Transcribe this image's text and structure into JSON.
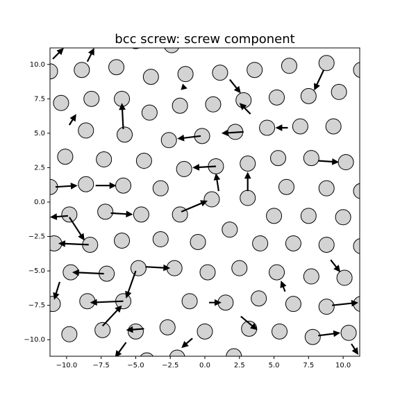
{
  "chart_data": {
    "type": "quiver",
    "title": "bcc screw: screw component",
    "xlim": [
      -11.2,
      11.2
    ],
    "ylim": [
      -11.2,
      11.2
    ],
    "xticks": [
      {
        "value": -10,
        "label": "−10.0"
      },
      {
        "value": -7.5,
        "label": "−7.5"
      },
      {
        "value": -5,
        "label": "−5.0"
      },
      {
        "value": -2.5,
        "label": "−2.5"
      },
      {
        "value": 0,
        "label": "0.0"
      },
      2.5,
      {
        "value": 5,
        "label": "5.0"
      },
      7.5,
      {
        "value": 10,
        "label": "10.0"
      }
    ],
    "yticks": [
      {
        "value": -10,
        "label": "−10.0"
      },
      {
        "value": -7.5,
        "label": "−7.5"
      },
      {
        "value": -5,
        "label": "−5.0"
      },
      {
        "value": -2.5,
        "label": "−2.5"
      },
      {
        "value": 0,
        "label": "0.0"
      },
      2.5,
      {
        "value": 5,
        "label": "5.0"
      },
      7.5,
      {
        "value": 10,
        "label": "10.0"
      }
    ],
    "atoms": {
      "color": "#d3d3d3",
      "x": [
        -11.2,
        -8.9,
        -6.4,
        -3.9,
        -1.4,
        1.1,
        3.6,
        6.1,
        8.8,
        11.3,
        -10.4,
        -8.2,
        -6.0,
        -4.0,
        -1.8,
        0.6,
        2.8,
        5.2,
        7.5,
        9.7,
        -8.6,
        -5.8,
        -2.6,
        -0.2,
        2.2,
        4.5,
        6.9,
        9.3,
        -10.1,
        -7.3,
        -4.4,
        -1.5,
        0.8,
        3.1,
        5.3,
        7.7,
        10.2,
        -11.2,
        -8.6,
        -5.9,
        -3.2,
        0.5,
        3.1,
        5.9,
        8.8,
        11.3,
        -9.8,
        -7.2,
        -4.6,
        -1.8,
        1.8,
        5.0,
        7.5,
        10.0,
        -10.9,
        -8.3,
        -6.0,
        -3.2,
        -0.5,
        4.0,
        6.4,
        8.8,
        11.3,
        -9.7,
        -7.1,
        -4.8,
        -2.2,
        0.2,
        2.5,
        5.2,
        7.7,
        10.1,
        -11.0,
        -8.5,
        -5.9,
        -1.1,
        1.5,
        3.9,
        6.4,
        8.8,
        11.3,
        -9.8,
        -7.4,
        -5.0,
        -2.7,
        0.0,
        3.2,
        5.4,
        7.8,
        10.4,
        -5.0,
        -2.4,
        -2.0,
        2.1,
        -4.2
      ],
      "y": [
        9.5,
        9.6,
        9.8,
        9.1,
        9.3,
        9.4,
        9.6,
        9.9,
        10.1,
        9.6,
        7.2,
        7.5,
        7.5,
        6.5,
        7.0,
        7.1,
        7.4,
        7.6,
        7.7,
        8.0,
        5.2,
        4.9,
        4.5,
        4.8,
        5.1,
        5.4,
        5.5,
        5.5,
        3.3,
        3.1,
        3.0,
        2.4,
        2.6,
        2.8,
        3.2,
        3.2,
        2.9,
        1.1,
        1.3,
        1.2,
        1.0,
        0.2,
        0.3,
        1.1,
        1.0,
        0.8,
        -0.9,
        -0.7,
        -0.9,
        -0.9,
        -2.0,
        -1.0,
        -1.0,
        -1.1,
        -3.0,
        -3.1,
        -2.8,
        -2.7,
        -2.9,
        -3.0,
        -3.0,
        -3.1,
        -3.2,
        -5.1,
        -5.2,
        -4.8,
        -4.8,
        -5.1,
        -4.8,
        -5.1,
        -5.4,
        -5.5,
        -7.4,
        -7.2,
        -7.2,
        -7.2,
        -7.3,
        -7.0,
        -7.4,
        -7.6,
        -7.4,
        -9.6,
        -9.3,
        -9.4,
        -9.1,
        -9.4,
        -9.2,
        -9.4,
        -9.8,
        -9.5,
        11.7,
        11.4,
        -11.3,
        -11.2,
        -11.5
      ]
    },
    "arrows": {
      "color": "#000000",
      "x": [
        -5.9,
        -1.7,
        1.0,
        3.1,
        0.8,
        -0.3,
        -4.3,
        -7.3,
        -5.9,
        -4.4,
        -9.9,
        -8.4,
        -9.8,
        -7.4,
        -5.0,
        -5.7,
        -11.0,
        -8.5,
        8.6,
        9.2,
        8.2,
        8.2,
        -10.8,
        -7.9,
        -6.8,
        2.8,
        6.0,
        0.3,
        2.6,
        -0.9,
        9.1,
        1.8,
        -9.8,
        3.3,
        -10.5,
        5.8,
        -1.5,
        10.6
      ],
      "y": [
        5.3,
        -0.7,
        0.8,
        0.8,
        2.6,
        4.8,
        -4.7,
        -5.2,
        -7.2,
        -9.2,
        -1.0,
        -3.1,
        -1.1,
        -9.0,
        -5.0,
        -10.2,
        10.4,
        10.2,
        9.6,
        -7.5,
        -9.7,
        3.0,
        1.1,
        1.2,
        -0.8,
        5.1,
        5.4,
        -7.3,
        -8.3,
        -9.9,
        -4.2,
        8.9,
        5.6,
        6.4,
        -5.8,
        -6.5,
        8.2,
        -10.3
      ],
      "u": [
        -0.1,
        1.9,
        -0.2,
        0,
        -1.7,
        -1.7,
        1.8,
        -2.3,
        -2.4,
        -1.3,
        -1.3,
        -2.2,
        1.1,
        1.4,
        -0.7,
        -0.8,
        0.8,
        0.5,
        -0.7,
        1.9,
        1.6,
        1.5,
        1.6,
        1.5,
        1.6,
        -1.6,
        -0.9,
        0.9,
        1.2,
        -0.8,
        0.7,
        0.8,
        0.5,
        -0.8,
        -0.4,
        -0.3,
        -0.1,
        0.5
      ],
      "v": [
        1.9,
        0.8,
        1.3,
        1.4,
        -0.1,
        -0.2,
        -0.1,
        0.1,
        -0.1,
        -0.1,
        -0.1,
        0.1,
        -1.7,
        1.5,
        -2.0,
        -1.1,
        0.8,
        1.0,
        -1.5,
        0.2,
        0.2,
        -0.1,
        0.1,
        0,
        -0.1,
        -0.1,
        0,
        0,
        -1.0,
        -0.7,
        -0.9,
        -1.0,
        0.8,
        0.8,
        -1.3,
        0.8,
        0.4,
        -0.8
      ]
    }
  }
}
